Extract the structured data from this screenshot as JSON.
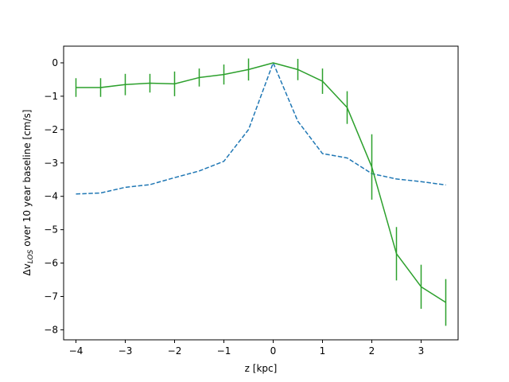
{
  "chart_data": {
    "type": "line",
    "xlabel": "z [kpc]",
    "ylabel": {
      "prefix": "Δv",
      "subscript": "LOS",
      "suffix": " over 10 year baseline [cm/s]"
    },
    "xlim": [
      -4.25,
      3.75
    ],
    "ylim": [
      -8.3,
      0.5
    ],
    "xticks": [
      -4,
      -3,
      -2,
      -1,
      0,
      1,
      2,
      3
    ],
    "yticks": [
      0,
      -1,
      -2,
      -3,
      -4,
      -5,
      -6,
      -7,
      -8
    ],
    "grid": false,
    "series": [
      {
        "style": "dashed",
        "color": "#1f77b4",
        "x": [
          -4,
          -3.5,
          -3,
          -2.5,
          -2,
          -1.5,
          -1,
          -0.5,
          0,
          0.5,
          1,
          1.5,
          2,
          2.5,
          3,
          3.5
        ],
        "y": [
          -3.93,
          -3.9,
          -3.73,
          -3.65,
          -3.44,
          -3.24,
          -2.95,
          -2.0,
          0.0,
          -1.75,
          -2.72,
          -2.85,
          -3.32,
          -3.48,
          -3.56,
          -3.66
        ]
      },
      {
        "style": "solid",
        "color": "#2ca02c",
        "x": [
          -4,
          -3.5,
          -3,
          -2.5,
          -2,
          -1.5,
          -1,
          -0.5,
          0,
          0.5,
          1,
          1.5,
          2,
          2.5,
          3,
          3.5
        ],
        "y": [
          -0.74,
          -0.74,
          -0.65,
          -0.61,
          -0.63,
          -0.44,
          -0.35,
          -0.2,
          0.0,
          -0.2,
          -0.55,
          -1.34,
          -3.12,
          -5.72,
          -6.71,
          -7.18
        ],
        "yerr": [
          0.28,
          0.28,
          0.32,
          0.28,
          0.37,
          0.27,
          0.3,
          0.33,
          0.0,
          0.32,
          0.38,
          0.49,
          0.98,
          0.8,
          0.66,
          0.7
        ]
      }
    ]
  }
}
